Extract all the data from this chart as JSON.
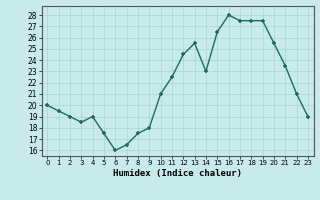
{
  "x": [
    0,
    1,
    2,
    3,
    4,
    5,
    6,
    7,
    8,
    9,
    10,
    11,
    12,
    13,
    14,
    15,
    16,
    17,
    18,
    19,
    20,
    21,
    22,
    23
  ],
  "y": [
    20,
    19.5,
    19,
    18.5,
    19,
    17.5,
    16,
    16.5,
    17.5,
    18,
    21,
    22.5,
    24.5,
    25.5,
    23,
    26.5,
    28,
    27.5,
    27.5,
    27.5,
    25.5,
    23.5,
    21,
    19
  ],
  "xlabel": "Humidex (Indice chaleur)",
  "ylim": [
    15.5,
    28.8
  ],
  "xlim": [
    -0.5,
    23.5
  ],
  "yticks": [
    16,
    17,
    18,
    19,
    20,
    21,
    22,
    23,
    24,
    25,
    26,
    27,
    28
  ],
  "xticks": [
    0,
    1,
    2,
    3,
    4,
    5,
    6,
    7,
    8,
    9,
    10,
    11,
    12,
    13,
    14,
    15,
    16,
    17,
    18,
    19,
    20,
    21,
    22,
    23
  ],
  "line_color": "#1f6b5a",
  "marker_color": "#1f6b5a",
  "bg_color": "#c8eaea",
  "grid_color": "#aad4d4",
  "axes_bg": "#c8eaea"
}
